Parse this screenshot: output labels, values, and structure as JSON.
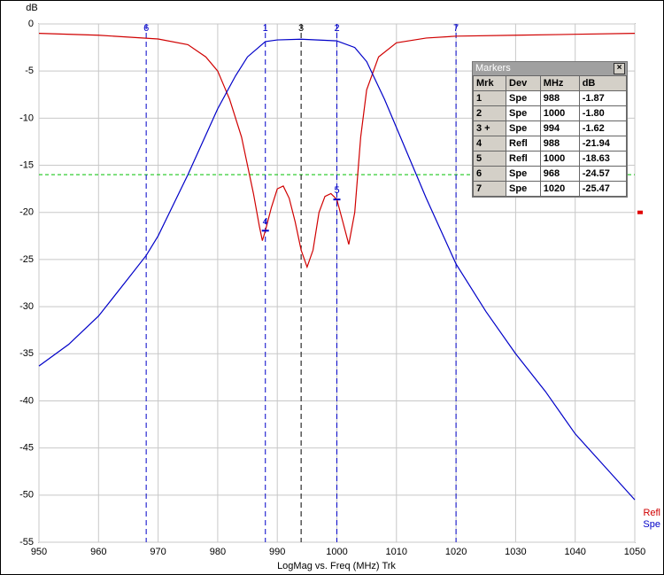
{
  "chart_data": {
    "type": "line",
    "y_axis_label": "dB",
    "x_axis_label": "LogMag vs. Freq (MHz)  Trk",
    "xlim": [
      950,
      1050
    ],
    "ylim": [
      -55,
      0
    ],
    "xticks": [
      950,
      960,
      970,
      980,
      990,
      1000,
      1010,
      1020,
      1030,
      1040,
      1050
    ],
    "yticks": [
      0,
      -5,
      -10,
      -15,
      -20,
      -25,
      -30,
      -35,
      -40,
      -45,
      -50,
      -55
    ],
    "grid": true,
    "reference_line": -16,
    "refl_ref_level": -20,
    "series": [
      {
        "name": "Refl",
        "color": "#d00000",
        "x": [
          950,
          960,
          970,
          975,
          978,
          980,
          982,
          984,
          986,
          987,
          987.5,
          988,
          989,
          990,
          991,
          992,
          993,
          994,
          995,
          996,
          997,
          998,
          999,
          1000,
          1001,
          1002,
          1003,
          1004,
          1005,
          1007,
          1010,
          1015,
          1020,
          1030,
          1040,
          1050
        ],
        "values": [
          -1.0,
          -1.2,
          -1.6,
          -2.2,
          -3.5,
          -5,
          -8,
          -12,
          -18,
          -21.5,
          -23,
          -21.94,
          -19.5,
          -17.5,
          -17.2,
          -18.5,
          -21,
          -24,
          -25.8,
          -24,
          -20,
          -18.3,
          -18,
          -18.63,
          -21,
          -23.4,
          -20,
          -12,
          -7,
          -3.5,
          -2,
          -1.5,
          -1.3,
          -1.2,
          -1.1,
          -1.0
        ]
      },
      {
        "name": "Spe",
        "color": "#0000c8",
        "x": [
          950,
          955,
          960,
          965,
          968,
          970,
          975,
          980,
          983,
          985,
          988,
          990,
          994,
          1000,
          1003,
          1005,
          1008,
          1010,
          1015,
          1020,
          1025,
          1030,
          1035,
          1040,
          1045,
          1050
        ],
        "values": [
          -36.3,
          -34,
          -31,
          -27,
          -24.57,
          -22.5,
          -16,
          -9,
          -5.5,
          -3.5,
          -1.87,
          -1.7,
          -1.62,
          -1.8,
          -2.5,
          -4,
          -8,
          -11,
          -18.5,
          -25.47,
          -30.5,
          -35,
          -39,
          -43.5,
          -47,
          -50.5
        ]
      }
    ],
    "marker_lines": [
      {
        "label": "6",
        "x": 968,
        "color": "#0000c8"
      },
      {
        "label": "1",
        "x": 988,
        "color": "#0000c8"
      },
      {
        "label": "3",
        "x": 994,
        "color": "#000000"
      },
      {
        "label": "2",
        "x": 1000,
        "color": "#0000c8"
      },
      {
        "label": "7",
        "x": 1020,
        "color": "#0000c8"
      }
    ],
    "point_markers": [
      {
        "label": "4",
        "x": 988,
        "y": -21.94
      },
      {
        "label": "5",
        "x": 1000,
        "y": -18.63
      }
    ]
  },
  "markers_window": {
    "title": "Markers",
    "columns": [
      "Mrk",
      "Dev",
      "MHz",
      "dB"
    ],
    "rows": [
      [
        "1",
        "Spe",
        "988",
        "-1.87"
      ],
      [
        "2",
        "Spe",
        "1000",
        "-1.80"
      ],
      [
        "3 +",
        "Spe",
        "994",
        "-1.62"
      ],
      [
        "4",
        "Refl",
        "988",
        "-21.94"
      ],
      [
        "5",
        "Refl",
        "1000",
        "-18.63"
      ],
      [
        "6",
        "Spe",
        "968",
        "-24.57"
      ],
      [
        "7",
        "Spe",
        "1020",
        "-25.47"
      ]
    ]
  }
}
